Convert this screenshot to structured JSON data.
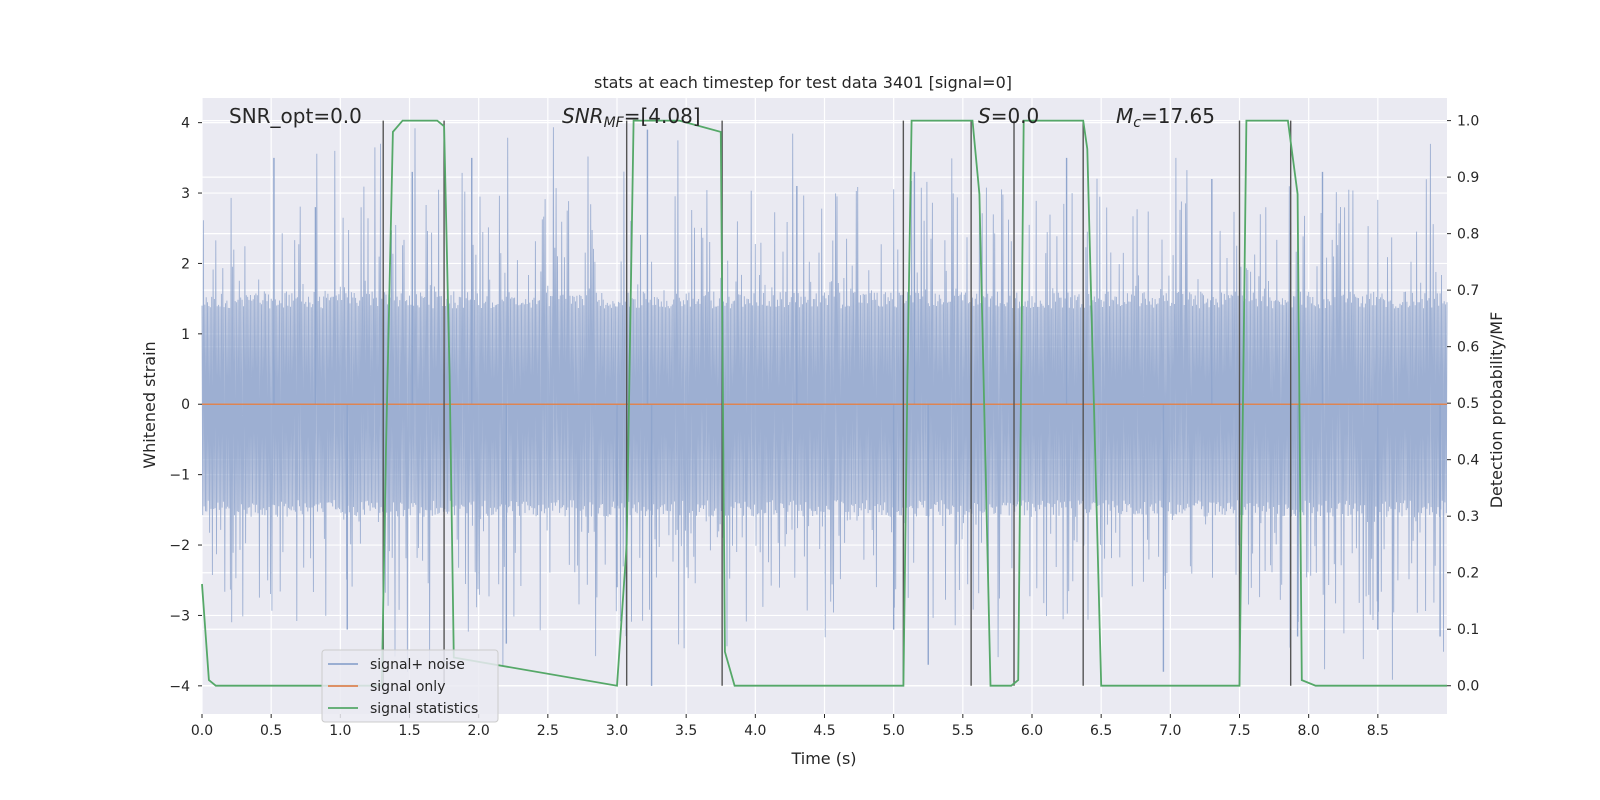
{
  "chart_data": {
    "type": "line",
    "title": "stats at each timestep for test data 3401 [signal=0]",
    "xlabel": "Time (s)",
    "ylabel_left": "Whitened strain",
    "ylabel_right": "Detection probability/MF",
    "xlim": [
      0.0,
      9.0
    ],
    "ylim_left": [
      -4.4,
      4.35
    ],
    "ylim_right": [
      -0.05,
      1.04
    ],
    "xticks": [
      0.0,
      0.5,
      1.0,
      1.5,
      2.0,
      2.5,
      3.0,
      3.5,
      4.0,
      4.5,
      5.0,
      5.5,
      6.0,
      6.5,
      7.0,
      7.5,
      8.0,
      8.5
    ],
    "xtick_labels": [
      "0.0",
      "0.5",
      "1.0",
      "1.5",
      "2.0",
      "2.5",
      "3.0",
      "3.5",
      "4.0",
      "4.5",
      "5.0",
      "5.5",
      "6.0",
      "6.5",
      "7.0",
      "7.5",
      "8.0",
      "8.5"
    ],
    "yticks_left": [
      -4,
      -3,
      -2,
      -1,
      0,
      1,
      2,
      3,
      4
    ],
    "ytick_labels_left": [
      "−4",
      "−3",
      "−2",
      "−1",
      "0",
      "1",
      "2",
      "3",
      "4"
    ],
    "yticks_right": [
      0.0,
      0.1,
      0.2,
      0.3,
      0.4,
      0.5,
      0.6,
      0.7,
      0.8,
      0.9,
      1.0
    ],
    "ytick_labels_right": [
      "0.0",
      "0.1",
      "0.2",
      "0.3",
      "0.4",
      "0.5",
      "0.6",
      "0.7",
      "0.8",
      "0.9",
      "1.0"
    ],
    "grid": true,
    "legend_placement": "lower-left",
    "annotations": {
      "snr_opt": "SNR_opt=0.0",
      "snr_mf": {
        "base": "SNR",
        "sub": "MF",
        "rest": "=[4.08]"
      },
      "s": {
        "base": "S",
        "rest": "=0.0"
      },
      "mc": {
        "base": "M",
        "sub": "c",
        "rest": "=17.65"
      }
    },
    "series": [
      {
        "name": "signal+ noise",
        "color": "#8fa5cd",
        "axis": "left",
        "envelope_hint": {
          "core_amplitude": 1.6,
          "peak_amplitude": 3.1,
          "max_amplitude": 4.0
        },
        "outliers": [
          [
            0.52,
            3.5
          ],
          [
            0.82,
            2.8
          ],
          [
            1.05,
            -3.2
          ],
          [
            1.52,
            3.3
          ],
          [
            1.95,
            3.5
          ],
          [
            2.2,
            -3.4
          ],
          [
            3.0,
            -2.6
          ],
          [
            3.22,
            3.9
          ],
          [
            3.25,
            -4.0
          ],
          [
            4.3,
            3.1
          ],
          [
            5.0,
            -3.2
          ],
          [
            5.15,
            3.3
          ],
          [
            5.25,
            -3.7
          ],
          [
            6.25,
            3.5
          ],
          [
            6.95,
            -3.8
          ],
          [
            7.3,
            3.2
          ],
          [
            7.92,
            -3.3
          ],
          [
            8.1,
            3.3
          ],
          [
            8.5,
            -3.2
          ],
          [
            8.95,
            -3.3
          ]
        ]
      },
      {
        "name": "signal only",
        "color": "#dd8452",
        "axis": "left",
        "x": [
          0.0,
          9.0
        ],
        "y": [
          0.0,
          0.0
        ]
      },
      {
        "name": "signal statistics",
        "color": "#55a868",
        "axis": "right",
        "x": [
          0.0,
          0.05,
          0.1,
          1.3,
          1.33,
          1.38,
          1.45,
          1.7,
          1.75,
          1.79,
          1.82,
          3.0,
          3.07,
          3.12,
          3.17,
          3.45,
          3.75,
          3.78,
          3.85,
          5.07,
          5.1,
          5.13,
          5.57,
          5.62,
          5.7,
          5.85,
          5.9,
          5.94,
          6.37,
          6.4,
          6.5,
          6.55,
          7.5,
          7.55,
          7.6,
          7.85,
          7.92,
          7.95,
          8.05,
          9.0
        ],
        "y": [
          0.18,
          0.01,
          0.0,
          0.0,
          0.42,
          0.98,
          1.0,
          1.0,
          0.99,
          0.55,
          0.05,
          0.0,
          0.25,
          1.0,
          1.0,
          1.0,
          0.98,
          0.06,
          0.0,
          0.0,
          0.55,
          1.0,
          1.0,
          0.87,
          0.0,
          0.0,
          0.01,
          1.0,
          1.0,
          0.95,
          0.0,
          0.0,
          0.0,
          1.0,
          1.0,
          1.0,
          0.87,
          0.01,
          0.0,
          0.0
        ]
      }
    ],
    "vlines": [
      1.31,
      1.75,
      3.07,
      3.76,
      5.07,
      5.56,
      5.87,
      6.37,
      7.5,
      7.87
    ]
  }
}
